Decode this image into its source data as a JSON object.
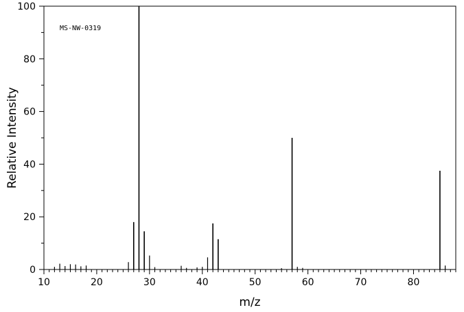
{
  "chart_data": {
    "type": "bar",
    "subtype": "mass-spectrum-stick",
    "annotation": "MS-NW-0319",
    "xlabel": "m/z",
    "ylabel": "Relative Intensity",
    "xlim": [
      10,
      88
    ],
    "ylim": [
      0,
      100
    ],
    "xticks": [
      10,
      20,
      30,
      40,
      50,
      60,
      70,
      80
    ],
    "yticks": [
      0,
      20,
      40,
      60,
      80,
      100
    ],
    "grid": false,
    "legend": "none",
    "color": "#000000",
    "peaks": [
      {
        "mz": 12,
        "intensity": 1.0
      },
      {
        "mz": 13,
        "intensity": 2.2
      },
      {
        "mz": 14,
        "intensity": 1.3
      },
      {
        "mz": 15,
        "intensity": 2.0
      },
      {
        "mz": 16,
        "intensity": 1.9
      },
      {
        "mz": 17,
        "intensity": 1.2
      },
      {
        "mz": 18,
        "intensity": 1.5
      },
      {
        "mz": 26,
        "intensity": 2.8
      },
      {
        "mz": 27,
        "intensity": 18.0
      },
      {
        "mz": 28,
        "intensity": 100
      },
      {
        "mz": 29,
        "intensity": 14.5
      },
      {
        "mz": 30,
        "intensity": 5.3
      },
      {
        "mz": 31,
        "intensity": 0.9
      },
      {
        "mz": 36,
        "intensity": 1.4
      },
      {
        "mz": 37,
        "intensity": 0.6
      },
      {
        "mz": 39,
        "intensity": 0.8
      },
      {
        "mz": 40,
        "intensity": 1.0
      },
      {
        "mz": 41,
        "intensity": 4.6
      },
      {
        "mz": 42,
        "intensity": 17.5
      },
      {
        "mz": 43,
        "intensity": 11.5
      },
      {
        "mz": 55,
        "intensity": 0.5
      },
      {
        "mz": 57,
        "intensity": 50.0
      },
      {
        "mz": 58,
        "intensity": 1.0
      },
      {
        "mz": 59,
        "intensity": 0.6
      },
      {
        "mz": 85,
        "intensity": 37.5
      },
      {
        "mz": 86,
        "intensity": 1.5
      }
    ]
  }
}
